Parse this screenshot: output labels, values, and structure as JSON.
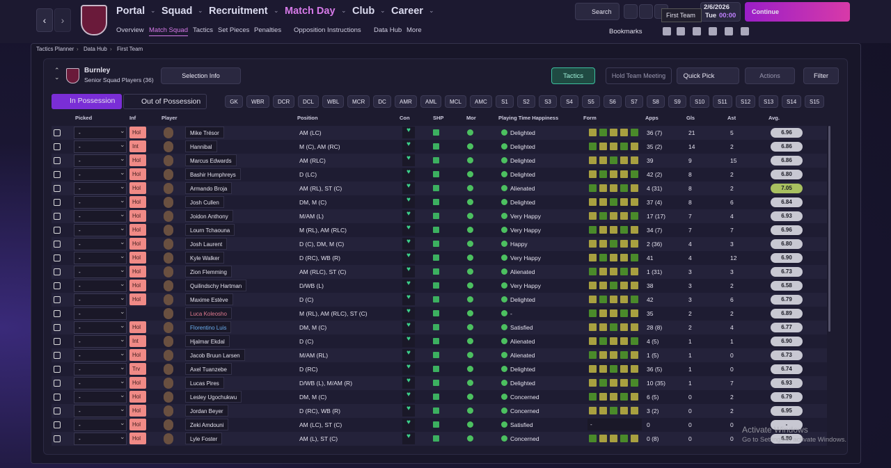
{
  "nav": {
    "main": [
      "Portal",
      "Squad",
      "Recruitment",
      "Match Day",
      "Club",
      "Career"
    ],
    "sub": [
      "Overview",
      "Match Squad",
      "Tactics",
      "Set Pieces",
      "Penalties",
      "Opposition Instructions",
      "Data Hub",
      "More"
    ],
    "search": "Search",
    "date": "2/6/2026",
    "day": "Tue",
    "time": "00:00",
    "continue": "Continue",
    "tooltip": "First Team",
    "bookmarks": "Bookmarks"
  },
  "breadcrumb": [
    "Tactics Planner",
    "Data Hub",
    "First Team"
  ],
  "panel": {
    "club": "Burnley",
    "subtitle": "Senior Squad Players (36)",
    "selection": "Selection Info",
    "tactics": "Tactics",
    "meeting": "Hold Team Meeting",
    "quick_pick": "Quick Pick",
    "actions": "Actions",
    "filter": "Filter",
    "tabs": [
      "In Possession",
      "Out of Possession"
    ],
    "positions": [
      "GK",
      "WBR",
      "DCR",
      "DCL",
      "WBL",
      "MCR",
      "DC",
      "AMR",
      "AML",
      "MCL",
      "AMC",
      "S1",
      "S2",
      "S3",
      "S4",
      "S5",
      "S6",
      "S7",
      "S8",
      "S9",
      "S10",
      "S11",
      "S12",
      "S13",
      "S14",
      "S15"
    ]
  },
  "table": {
    "columns": [
      "Picked",
      "Inf",
      "Player",
      "Position",
      "Con",
      "SHP",
      "Mor",
      "Playing Time Happiness",
      "Form",
      "Apps",
      "Gls",
      "Ast",
      "Avg."
    ],
    "rows": [
      {
        "picked": "-",
        "inf": "Hol",
        "name": "Mike Trésor",
        "position": "AM (LC)",
        "happiness": "Delighted",
        "apps": "36 (7)",
        "gls": 21,
        "ast": 5,
        "avg": "6.96"
      },
      {
        "picked": "-",
        "inf": "Int",
        "name": "Hannibal",
        "position": "M (C), AM (RC)",
        "happiness": "Delighted",
        "apps": "35 (2)",
        "gls": 14,
        "ast": 2,
        "avg": "6.86"
      },
      {
        "picked": "-",
        "inf": "Hol",
        "name": "Marcus Edwards",
        "position": "AM (RLC)",
        "happiness": "Delighted",
        "apps": "39",
        "gls": 9,
        "ast": 15,
        "avg": "6.86"
      },
      {
        "picked": "-",
        "inf": "Hol",
        "name": "Bashir Humphreys",
        "position": "D (LC)",
        "happiness": "Delighted",
        "apps": "42 (2)",
        "gls": 8,
        "ast": 2,
        "avg": "6.80"
      },
      {
        "picked": "-",
        "inf": "Hol",
        "name": "Armando Broja",
        "position": "AM (RL), ST (C)",
        "happiness": "Alienated",
        "apps": "4 (31)",
        "gls": 8,
        "ast": 2,
        "avg": "7.05"
      },
      {
        "picked": "-",
        "inf": "Hol",
        "name": "Josh Cullen",
        "position": "DM, M (C)",
        "happiness": "Delighted",
        "apps": "37 (4)",
        "gls": 8,
        "ast": 6,
        "avg": "6.84"
      },
      {
        "picked": "-",
        "inf": "Hol",
        "name": "Joidon Anthony",
        "position": "M/AM (L)",
        "happiness": "Very Happy",
        "apps": "17 (17)",
        "gls": 7,
        "ast": 4,
        "avg": "6.93"
      },
      {
        "picked": "-",
        "inf": "Hol",
        "name": "Lourn Tchaouna",
        "position": "M (RL), AM (RLC)",
        "happiness": "Very Happy",
        "apps": "34 (7)",
        "gls": 7,
        "ast": 7,
        "avg": "6.96"
      },
      {
        "picked": "-",
        "inf": "Hol",
        "name": "Josh Laurent",
        "position": "D (C), DM, M (C)",
        "happiness": "Happy",
        "apps": "2 (36)",
        "gls": 4,
        "ast": 3,
        "avg": "6.80"
      },
      {
        "picked": "-",
        "inf": "Hol",
        "name": "Kyle Walker",
        "position": "D (RC), WB (R)",
        "happiness": "Very Happy",
        "apps": "41",
        "gls": 4,
        "ast": 12,
        "avg": "6.90"
      },
      {
        "picked": "-",
        "inf": "Hol",
        "name": "Zion Flemming",
        "position": "AM (RLC), ST (C)",
        "happiness": "Alienated",
        "apps": "1 (31)",
        "gls": 3,
        "ast": 3,
        "avg": "6.73"
      },
      {
        "picked": "-",
        "inf": "Hol",
        "name": "Quilindschy Hartman",
        "position": "D/WB (L)",
        "happiness": "Very Happy",
        "apps": "38",
        "gls": 3,
        "ast": 2,
        "avg": "6.58"
      },
      {
        "picked": "-",
        "inf": "Hol",
        "name": "Maxime Estève",
        "position": "D (C)",
        "happiness": "Delighted",
        "apps": "42",
        "gls": 3,
        "ast": 6,
        "avg": "6.79"
      },
      {
        "picked": "-",
        "inf": null,
        "name": "Luca Koleosho",
        "position": "M (RL), AM (RLC), ST (C)",
        "happiness": "-",
        "apps": "35",
        "gls": 2,
        "ast": 2,
        "avg": "6.89"
      },
      {
        "picked": "-",
        "inf": "Hol",
        "name": "Florentino Luis",
        "position": "DM, M (C)",
        "happiness": "Satisfied",
        "apps": "28 (8)",
        "gls": 2,
        "ast": 4,
        "avg": "6.77"
      },
      {
        "picked": "-",
        "inf": "Int",
        "name": "Hjalmar Ekdal",
        "position": "D (C)",
        "happiness": "Alienated",
        "apps": "4 (5)",
        "gls": 1,
        "ast": 1,
        "avg": "6.90"
      },
      {
        "picked": "-",
        "inf": "Hol",
        "name": "Jacob Bruun Larsen",
        "position": "M/AM (RL)",
        "happiness": "Alienated",
        "apps": "1 (5)",
        "gls": 1,
        "ast": 0,
        "avg": "6.73"
      },
      {
        "picked": "-",
        "inf": "Trv",
        "name": "Axel Tuanzebe",
        "position": "D (RC)",
        "happiness": "Delighted",
        "apps": "36 (5)",
        "gls": 1,
        "ast": 0,
        "avg": "6.74"
      },
      {
        "picked": "-",
        "inf": "Hol",
        "name": "Lucas Pires",
        "position": "D/WB (L), M/AM (R)",
        "happiness": "Delighted",
        "apps": "10 (35)",
        "gls": 1,
        "ast": 7,
        "avg": "6.93"
      },
      {
        "picked": "-",
        "inf": "Hol",
        "name": "Lesley Ugochukwu",
        "position": "DM, M (C)",
        "happiness": "Concerned",
        "apps": "6 (5)",
        "gls": 0,
        "ast": 2,
        "avg": "6.79"
      },
      {
        "picked": "-",
        "inf": "Hol",
        "name": "Jordan Beyer",
        "position": "D (RC), WB (R)",
        "happiness": "Concerned",
        "apps": "3 (2)",
        "gls": 0,
        "ast": 2,
        "avg": "6.95"
      },
      {
        "picked": "-",
        "inf": "Hol",
        "name": "Zeki Amdouni",
        "position": "AM (LC), ST (C)",
        "happiness": "Satisfied",
        "form": "-",
        "apps": "0",
        "gls": 0,
        "ast": 0,
        "avg": "-"
      },
      {
        "picked": "-",
        "inf": "Hol",
        "name": "Lyle Foster",
        "position": "AM (L), ST (C)",
        "happiness": "Concerned",
        "apps": "0 (8)",
        "gls": 0,
        "ast": 0,
        "avg": "6.80"
      }
    ]
  },
  "watermark": {
    "title": "Activate Windows",
    "text": "Go to Settings to activate Windows."
  }
}
